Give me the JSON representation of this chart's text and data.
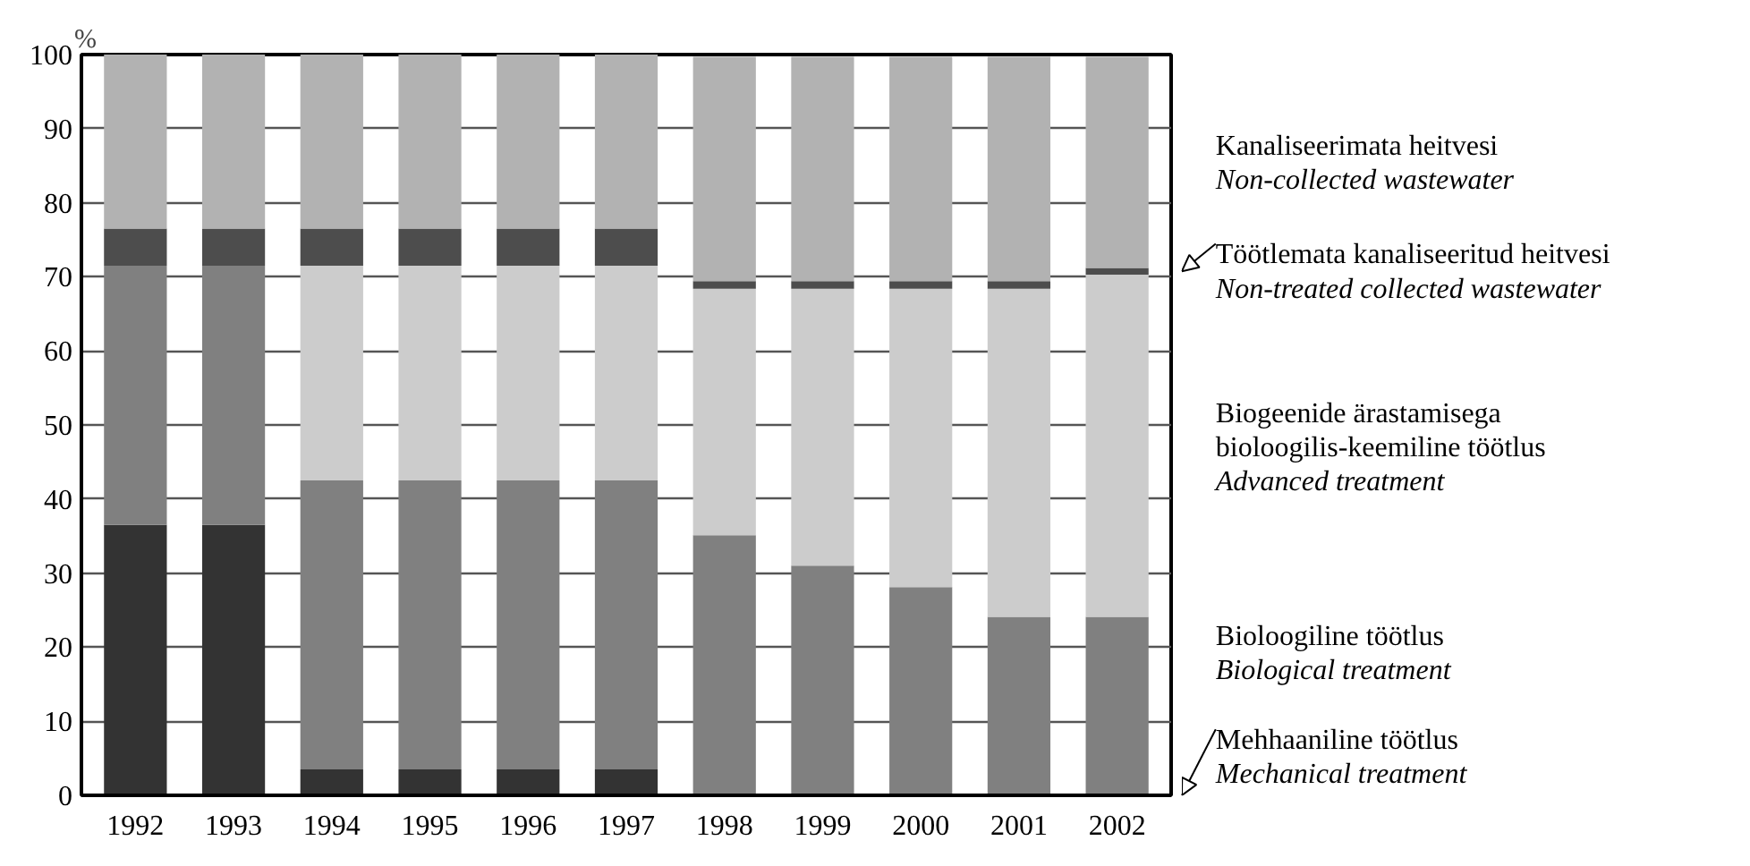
{
  "chart_data": {
    "type": "bar",
    "stacked": true,
    "ylabel": "%",
    "categories": [
      "1992",
      "1993",
      "1994",
      "1995",
      "1996",
      "1997",
      "1998",
      "1999",
      "2000",
      "2001",
      "2002"
    ],
    "series": [
      {
        "name": "Mehhaaniline töötlus\nMechanical treatment",
        "color": "#333333",
        "values": [
          36.5,
          36.5,
          3.5,
          3.5,
          3.5,
          3.5,
          null,
          null,
          null,
          null,
          null
        ]
      },
      {
        "name": "Bioloogiline töötlus\nBiological treatment",
        "color": "#808080",
        "values": [
          35,
          35,
          39,
          39,
          39,
          39,
          35.1,
          31,
          28.1,
          24.1,
          24.1
        ]
      },
      {
        "name": "Biogeenide ärastamisega\nbioloogilis-keemiline töötlus\nAdvanced treatment",
        "color": "#cccccc",
        "values": [
          0,
          0,
          29,
          29,
          29,
          29,
          33.3,
          37.4,
          40.3,
          44.3,
          46.2
        ]
      },
      {
        "name": "Töötlemata kanaliseeritud heitvesi\nNon-treated collected wastewater",
        "color": "#4d4d4d",
        "values": [
          5,
          5,
          5,
          5,
          5,
          5,
          1,
          1,
          1,
          1,
          0.9
        ]
      },
      {
        "name": "Kanaliseerimata heitvesi\nNon-collected wastewater",
        "color": "#b2b2b2",
        "values": [
          23.5,
          23.5,
          23.5,
          23.5,
          23.5,
          23.5,
          30.3,
          30.3,
          30.3,
          30.3,
          28.5
        ]
      }
    ],
    "ylim": [
      0,
      100
    ],
    "yticks": [
      0,
      10,
      20,
      30,
      40,
      50,
      60,
      70,
      80,
      90,
      100
    ],
    "grid": "y"
  }
}
